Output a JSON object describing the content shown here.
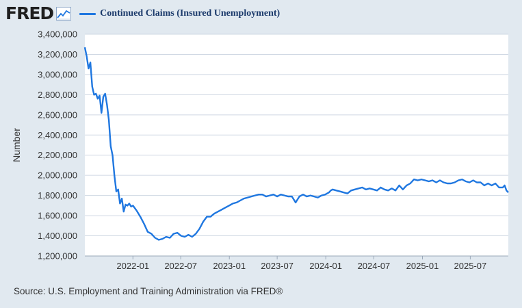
{
  "header": {
    "logo_text": "FRED",
    "logo_icon": "trend-line-icon",
    "legend_label": "Continued Claims (Insured Unemployment)"
  },
  "source": "Source: U.S. Employment and Training Administration via FRED®",
  "colors": {
    "series": "#1f77e0",
    "background": "#e1e9f0",
    "plot": "#ffffff"
  },
  "chart_data": {
    "type": "line",
    "title": "",
    "xlabel": "",
    "ylabel": "Number",
    "ylim": [
      1200000,
      3400000
    ],
    "yticks": [
      1200000,
      1400000,
      1600000,
      1800000,
      2000000,
      2200000,
      2400000,
      2600000,
      2800000,
      3000000,
      3200000,
      3400000
    ],
    "ytick_labels": [
      "1,200,000",
      "1,400,000",
      "1,600,000",
      "1,800,000",
      "2,000,000",
      "2,200,000",
      "2,400,000",
      "2,600,000",
      "2,800,000",
      "3,000,000",
      "3,200,000",
      "3,400,000"
    ],
    "xlim": [
      "2021-07-03",
      "2025-11-22"
    ],
    "xticks": [
      "2022-01-01",
      "2022-07-01",
      "2023-01-01",
      "2023-07-01",
      "2024-01-01",
      "2024-07-01",
      "2025-01-01",
      "2025-07-01"
    ],
    "xtick_labels": [
      "2022-01",
      "2022-07",
      "2023-01",
      "2023-07",
      "2024-01",
      "2024-07",
      "2025-01",
      "2025-07"
    ],
    "grid": true,
    "legend": "top",
    "series": [
      {
        "name": "Continued Claims (Insured Unemployment)",
        "x": [
          "2021-07-03",
          "2021-07-10",
          "2021-07-17",
          "2021-07-24",
          "2021-07-31",
          "2021-08-07",
          "2021-08-14",
          "2021-08-21",
          "2021-08-28",
          "2021-09-04",
          "2021-09-11",
          "2021-09-18",
          "2021-09-25",
          "2021-10-02",
          "2021-10-09",
          "2021-10-16",
          "2021-10-23",
          "2021-10-30",
          "2021-11-06",
          "2021-11-13",
          "2021-11-20",
          "2021-11-27",
          "2021-12-04",
          "2021-12-11",
          "2021-12-18",
          "2021-12-25",
          "2022-01-01",
          "2022-01-15",
          "2022-01-29",
          "2022-02-12",
          "2022-02-26",
          "2022-03-12",
          "2022-03-26",
          "2022-04-09",
          "2022-04-23",
          "2022-05-07",
          "2022-05-21",
          "2022-06-04",
          "2022-06-18",
          "2022-07-02",
          "2022-07-16",
          "2022-07-30",
          "2022-08-13",
          "2022-08-27",
          "2022-09-10",
          "2022-09-24",
          "2022-10-08",
          "2022-10-22",
          "2022-11-05",
          "2022-11-19",
          "2022-12-03",
          "2022-12-17",
          "2022-12-31",
          "2023-01-14",
          "2023-01-28",
          "2023-02-11",
          "2023-02-25",
          "2023-03-11",
          "2023-03-25",
          "2023-04-08",
          "2023-04-22",
          "2023-05-06",
          "2023-05-20",
          "2023-06-03",
          "2023-06-17",
          "2023-07-01",
          "2023-07-15",
          "2023-07-29",
          "2023-08-12",
          "2023-08-26",
          "2023-09-09",
          "2023-09-23",
          "2023-10-07",
          "2023-10-21",
          "2023-11-04",
          "2023-11-18",
          "2023-12-02",
          "2023-12-16",
          "2023-12-30",
          "2024-01-13",
          "2024-01-20",
          "2024-01-27",
          "2024-02-10",
          "2024-02-24",
          "2024-03-09",
          "2024-03-23",
          "2024-04-06",
          "2024-04-20",
          "2024-05-04",
          "2024-05-18",
          "2024-06-01",
          "2024-06-15",
          "2024-06-29",
          "2024-07-13",
          "2024-07-27",
          "2024-08-10",
          "2024-08-24",
          "2024-09-07",
          "2024-09-21",
          "2024-10-05",
          "2024-10-19",
          "2024-11-02",
          "2024-11-16",
          "2024-11-30",
          "2024-12-14",
          "2024-12-28",
          "2025-01-11",
          "2025-01-25",
          "2025-02-08",
          "2025-02-22",
          "2025-03-08",
          "2025-03-22",
          "2025-04-05",
          "2025-04-19",
          "2025-05-03",
          "2025-05-17",
          "2025-05-31",
          "2025-06-14",
          "2025-06-28",
          "2025-07-12",
          "2025-07-26",
          "2025-08-09",
          "2025-08-23",
          "2025-09-06",
          "2025-09-20",
          "2025-10-04",
          "2025-10-18",
          "2025-11-01",
          "2025-11-08",
          "2025-11-15",
          "2025-11-22"
        ],
        "y": [
          3270000,
          3180000,
          3060000,
          3120000,
          2880000,
          2800000,
          2810000,
          2760000,
          2790000,
          2620000,
          2780000,
          2810000,
          2700000,
          2550000,
          2290000,
          2200000,
          2000000,
          1840000,
          1860000,
          1720000,
          1770000,
          1640000,
          1710000,
          1700000,
          1720000,
          1690000,
          1700000,
          1650000,
          1590000,
          1520000,
          1440000,
          1420000,
          1380000,
          1360000,
          1370000,
          1390000,
          1380000,
          1420000,
          1430000,
          1400000,
          1390000,
          1410000,
          1390000,
          1420000,
          1470000,
          1540000,
          1590000,
          1590000,
          1620000,
          1640000,
          1660000,
          1680000,
          1700000,
          1720000,
          1730000,
          1750000,
          1770000,
          1780000,
          1790000,
          1800000,
          1810000,
          1810000,
          1790000,
          1800000,
          1810000,
          1790000,
          1810000,
          1800000,
          1790000,
          1790000,
          1730000,
          1790000,
          1810000,
          1790000,
          1800000,
          1790000,
          1780000,
          1800000,
          1810000,
          1830000,
          1850000,
          1860000,
          1850000,
          1840000,
          1830000,
          1820000,
          1850000,
          1860000,
          1870000,
          1880000,
          1860000,
          1870000,
          1860000,
          1850000,
          1880000,
          1860000,
          1850000,
          1870000,
          1850000,
          1900000,
          1860000,
          1900000,
          1920000,
          1960000,
          1950000,
          1960000,
          1950000,
          1940000,
          1950000,
          1930000,
          1950000,
          1930000,
          1920000,
          1920000,
          1930000,
          1950000,
          1960000,
          1940000,
          1930000,
          1950000,
          1930000,
          1930000,
          1900000,
          1920000,
          1900000,
          1920000,
          1880000,
          1880000,
          1900000,
          1850000,
          1830000
        ],
        "y_note": ""
      }
    ]
  }
}
